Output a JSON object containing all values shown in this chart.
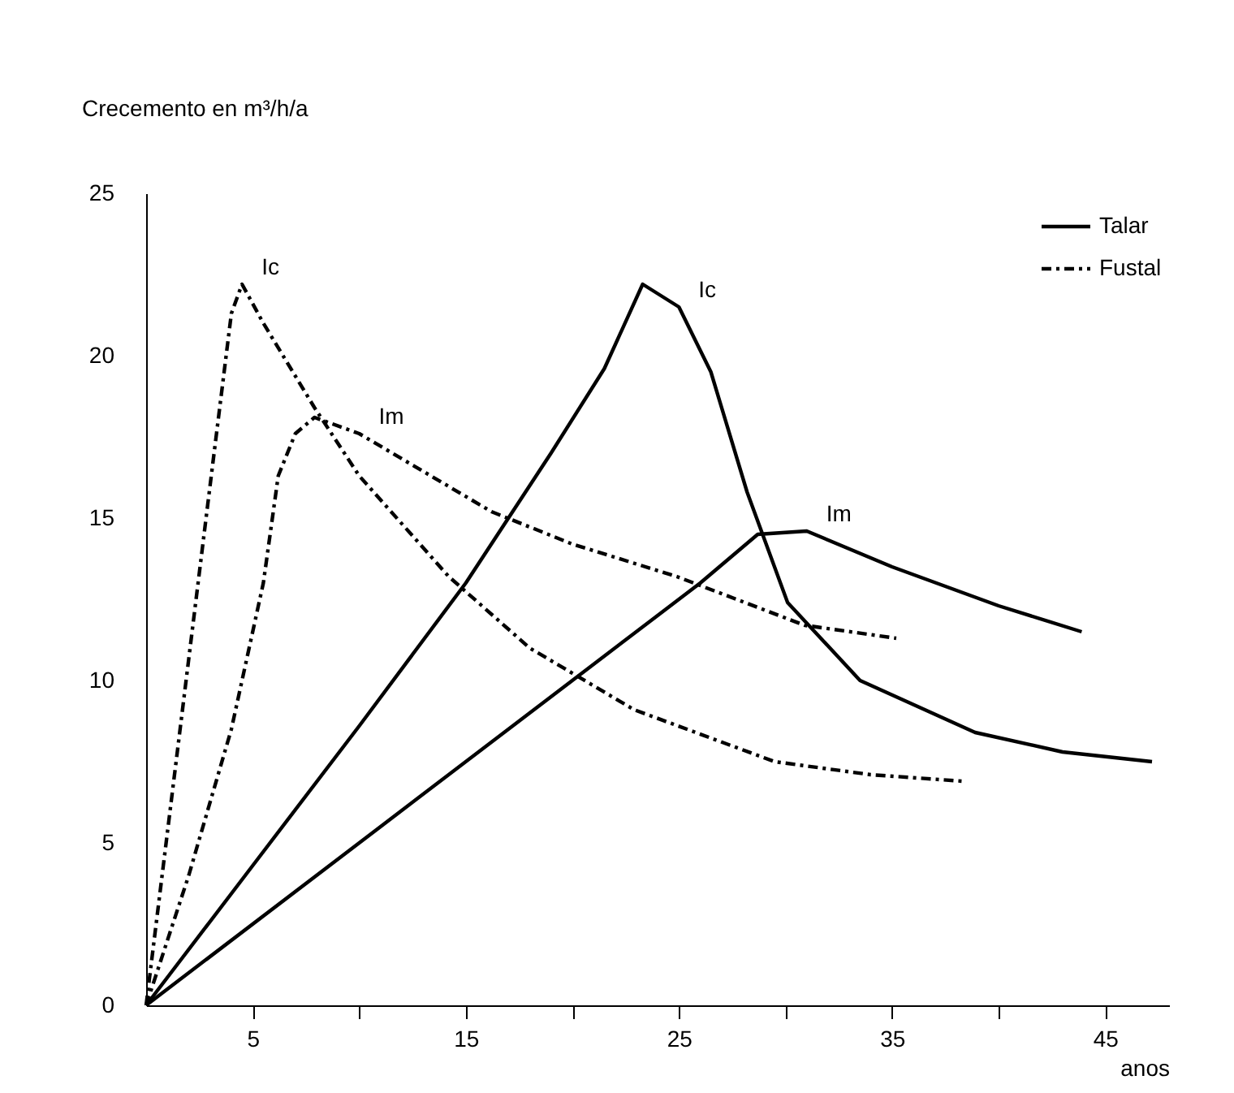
{
  "chart_data": {
    "type": "line",
    "xlabel": "anos",
    "ylabel": "Crecemento en m³/h/a",
    "xlim": [
      0,
      48
    ],
    "ylim": [
      0,
      25
    ],
    "xticks": [
      5,
      {
        "value": 10,
        "label": null
      },
      15,
      {
        "value": 20,
        "label": null
      },
      25,
      {
        "value": 30,
        "label": null
      },
      35,
      {
        "value": 40,
        "label": null
      },
      45
    ],
    "yticks": [
      0,
      5,
      10,
      15,
      20,
      25
    ],
    "grid": false,
    "legend": "top right",
    "marker": "none",
    "series": [
      {
        "name": "Talar",
        "color": "#000000",
        "line_style": "solid",
        "x": [
          0,
          5,
          10,
          15,
          19,
          21.5,
          23.3,
          25,
          26.5,
          28.2,
          30.1,
          33.5,
          38.9,
          43,
          47.2
        ],
        "values": [
          0,
          4.3,
          8.6,
          13,
          17,
          19.6,
          22.2,
          21.5,
          19.5,
          15.8,
          12.4,
          10,
          8.4,
          7.8,
          7.5
        ]
      },
      {
        "color": "#000000",
        "line_style": "solid",
        "x": [
          0,
          10,
          20,
          26,
          28.7,
          31,
          35,
          40,
          43.9
        ],
        "values": [
          0,
          5,
          10,
          13,
          14.5,
          14.6,
          13.5,
          12.3,
          11.5
        ]
      },
      {
        "name": "Fustal",
        "color": "#000000",
        "line_style": "dashed",
        "x": [
          0,
          1.5,
          3,
          4,
          4.5,
          5.5,
          7.9,
          10,
          14.2,
          18,
          22.9,
          29.5,
          34,
          38.3
        ],
        "values": [
          0,
          8,
          16,
          21.3,
          22.2,
          21,
          18.4,
          16.3,
          13.2,
          11,
          9.1,
          7.5,
          7.1,
          6.9
        ]
      },
      {
        "color": "#000000",
        "line_style": "dashed",
        "x": [
          0,
          2,
          4,
          5.5,
          6.2,
          7,
          7.9,
          10,
          16.2,
          20,
          24.9,
          30.9,
          35.2
        ],
        "values": [
          0,
          4,
          8.5,
          13,
          16.3,
          17.6,
          18.1,
          17.6,
          15.2,
          14.2,
          13.2,
          11.7,
          11.3
        ]
      }
    ],
    "annotations": [
      {
        "text": "Ic",
        "x": 25,
        "y": 21.5
      },
      {
        "text": "Ic",
        "x": 4.5,
        "y": 22.2
      },
      {
        "text": "Im",
        "x": 10,
        "y": 17.6
      },
      {
        "text": "Im",
        "x": 31,
        "y": 14.6
      }
    ]
  }
}
